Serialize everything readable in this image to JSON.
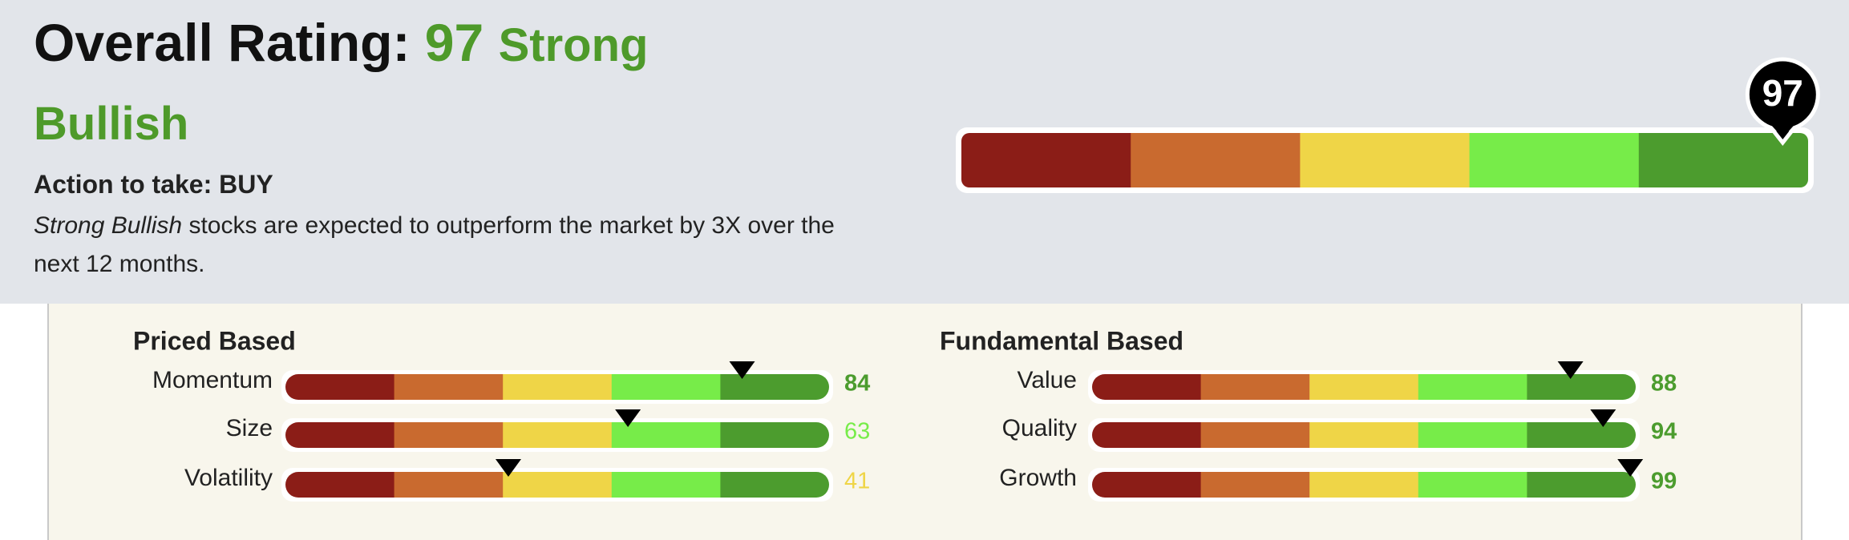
{
  "header": {
    "title": "Overall Rating:",
    "score": 97,
    "rating": "Strong Bullish",
    "action": "Action to take: BUY",
    "description_emphasis": "Strong Bullish",
    "description": "stocks are expected to outperform the market by 3X over the next 12 months."
  },
  "scale": {
    "range": [
      0,
      100
    ],
    "colors": [
      "#8b1d17",
      "#c96a2f",
      "#efd547",
      "#77ec49",
      "#4c9c2e"
    ]
  },
  "groups": [
    {
      "title": "Priced Based",
      "factors": [
        {
          "name": "Momentum",
          "score": 84
        },
        {
          "name": "Size",
          "score": 63
        },
        {
          "name": "Volatility",
          "score": 41
        }
      ]
    },
    {
      "title": "Fundamental Based",
      "factors": [
        {
          "name": "Value",
          "score": 88
        },
        {
          "name": "Quality",
          "score": 94
        },
        {
          "name": "Growth",
          "score": 99
        }
      ]
    }
  ]
}
